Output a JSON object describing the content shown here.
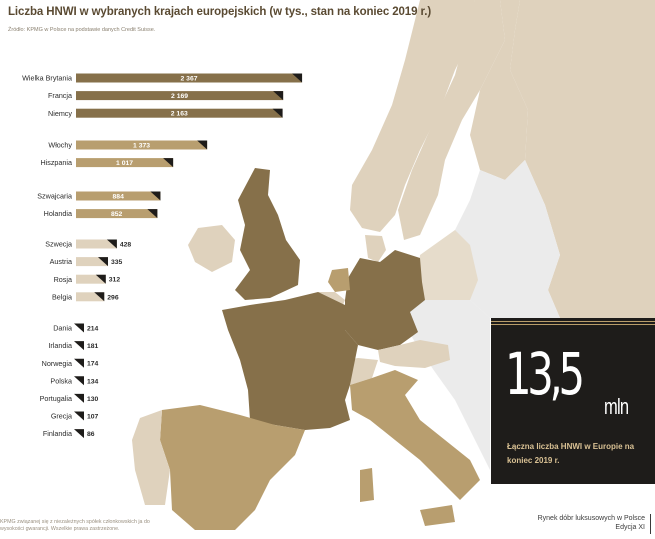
{
  "title": "Liczba HNWI w wybranych krajach europejskich (w tys., stan na koniec 2019 r.)",
  "source": "Źródło: KPMG w Polsce na podstawie danych Credit Suisse.",
  "colors": {
    "dark": "#86704a",
    "medium": "#b89e6f",
    "light": "#dfd2bd",
    "grey": "#e8e8e8",
    "box": "#1e1c1a",
    "accent": "#d9c194"
  },
  "chart_data": {
    "type": "bar",
    "orientation": "horizontal",
    "unit": "tys.",
    "groups": [
      {
        "tier": "dark",
        "items": [
          {
            "label": "Wielka Brytania",
            "value": 2367,
            "display": "2 367"
          },
          {
            "label": "Francja",
            "value": 2169,
            "display": "2 169"
          },
          {
            "label": "Niemcy",
            "value": 2163,
            "display": "2 163"
          }
        ]
      },
      {
        "tier": "medium",
        "items": [
          {
            "label": "Włochy",
            "value": 1373,
            "display": "1 373"
          },
          {
            "label": "Hiszpania",
            "value": 1017,
            "display": "1 017"
          }
        ]
      },
      {
        "tier": "medium",
        "items": [
          {
            "label": "Szwajcaria",
            "value": 884,
            "display": "884"
          },
          {
            "label": "Holandia",
            "value": 852,
            "display": "852"
          }
        ]
      },
      {
        "tier": "light",
        "items": [
          {
            "label": "Szwecja",
            "value": 428,
            "display": "428"
          },
          {
            "label": "Austria",
            "value": 335,
            "display": "335"
          },
          {
            "label": "Rosja",
            "value": 312,
            "display": "312"
          },
          {
            "label": "Belgia",
            "value": 296,
            "display": "296"
          }
        ]
      },
      {
        "tier": "none",
        "items": [
          {
            "label": "Dania",
            "value": 214,
            "display": "214"
          },
          {
            "label": "Irlandia",
            "value": 181,
            "display": "181"
          },
          {
            "label": "Norwegia",
            "value": 174,
            "display": "174"
          },
          {
            "label": "Polska",
            "value": 134,
            "display": "134"
          },
          {
            "label": "Portugalia",
            "value": 130,
            "display": "130"
          },
          {
            "label": "Grecja",
            "value": 107,
            "display": "107"
          },
          {
            "label": "Finlandia",
            "value": 86,
            "display": "86"
          }
        ]
      }
    ]
  },
  "stat_box": {
    "number": "13,5",
    "unit": "mln",
    "caption": "Łączna liczba HNWI w Europie na koniec 2019 r."
  },
  "footer": {
    "left": "KPMG związanej się z niezależnych spółek członkowskich ja do wysokości gwarancji. Wszelkie prawa zastrzeżone.",
    "right_line1": "Rynek dóbr luksusowych w Polsce",
    "right_line2": "Edycja XI"
  }
}
